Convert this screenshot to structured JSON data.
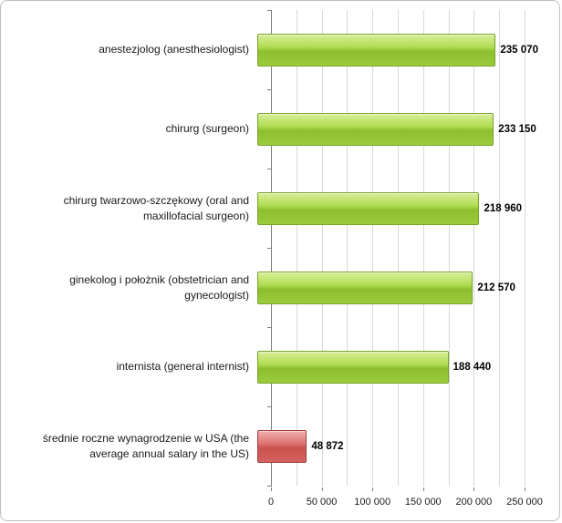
{
  "chart_data": {
    "type": "bar",
    "orientation": "horizontal",
    "title": "",
    "xlabel": "",
    "ylabel": "",
    "xlim": [
      0,
      250000
    ],
    "gridline_step": 25000,
    "grid": true,
    "legend": false,
    "categories": [
      "anestezjolog (anesthesiologist)",
      "chirurg (surgeon)",
      "chirurg twarzowo-szczękowy  (oral and maxillofacial surgeon)",
      "ginekolog i położnik (obstetrician and gynecologist)",
      "internista (general internist)",
      "średnie roczne wynagrodzenie w USA (the average annual salary in the US)"
    ],
    "values": [
      235070,
      233150,
      218960,
      212570,
      188440,
      48872
    ],
    "value_labels": [
      "235 070",
      "233 150",
      "218 960",
      "212 570",
      "188 440",
      "48 872"
    ],
    "bar_color_keys": [
      "green",
      "green",
      "green",
      "green",
      "green",
      "red"
    ],
    "xticks": [
      0,
      50000,
      100000,
      150000,
      200000,
      250000
    ],
    "xtick_labels": [
      "0",
      "50 000",
      "100 000",
      "150 000",
      "200 000",
      "250 000"
    ],
    "colors": {
      "green_bar": "#9bcc3e",
      "green_bar_border": "#79a22a",
      "red_bar": "#d3615d",
      "red_bar_border": "#9e3c3a",
      "gridline": "#d9d9d9",
      "axis": "#7f7f7f"
    }
  }
}
